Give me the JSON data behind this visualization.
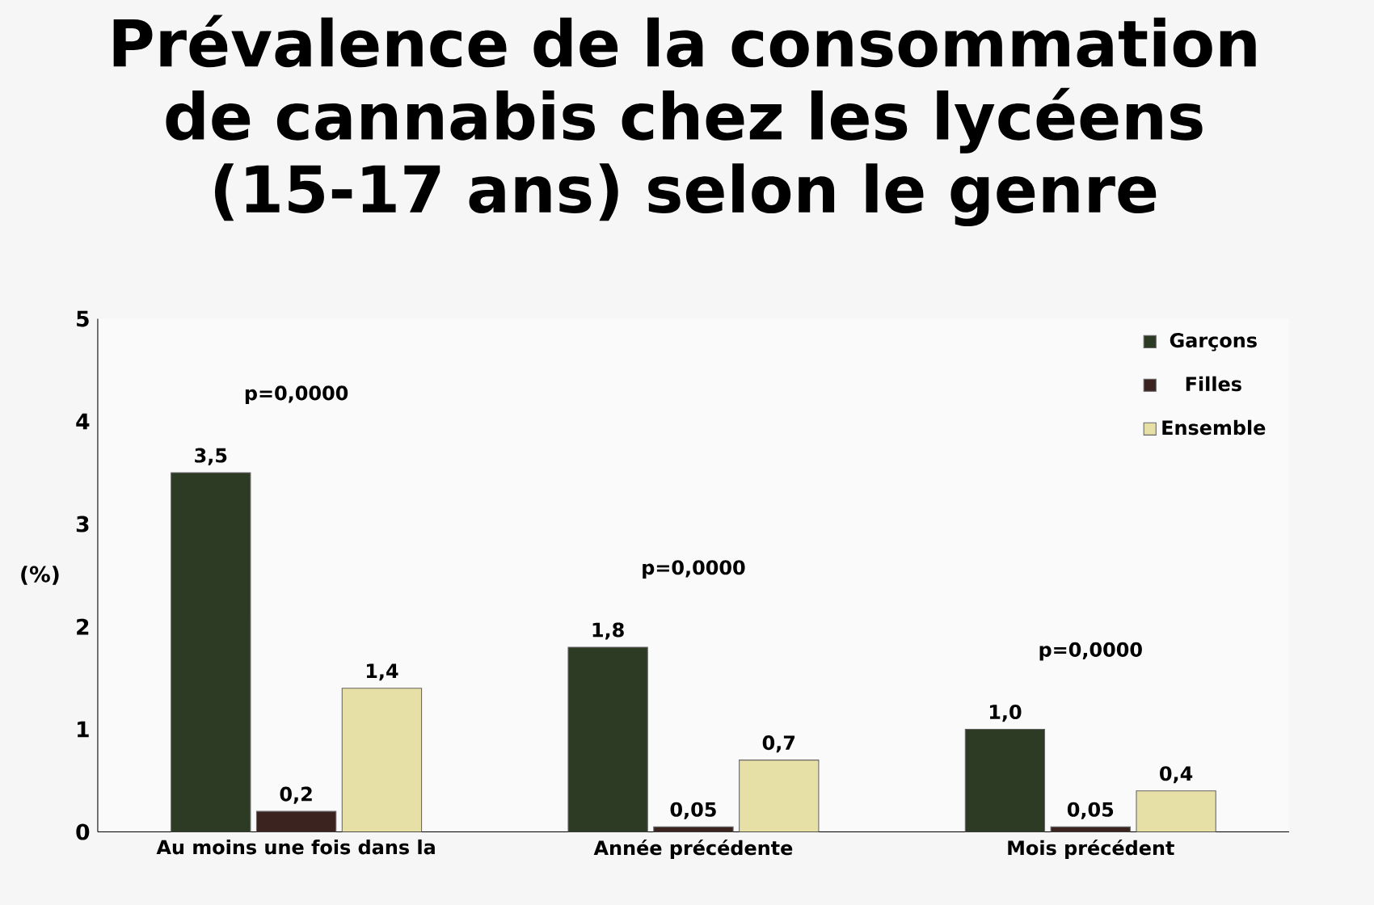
{
  "chart_data": {
    "type": "bar",
    "title": "Prévalence de la consommation de cannabis chez les lycéens (15-17 ans) selon le genre",
    "ylabel": "(%)",
    "categories": [
      "Au moins une fois dans la",
      "Année précédente",
      "Mois précédent"
    ],
    "series": [
      {
        "name": "Garçons",
        "color": "#2e3b24",
        "values": [
          3.5,
          1.8,
          1.0
        ],
        "value_labels": [
          "3,5",
          "1,8",
          "1,0"
        ]
      },
      {
        "name": "Filles",
        "color": "#3b2420",
        "values": [
          0.2,
          0.05,
          0.05
        ],
        "value_labels": [
          "0,2",
          "0,05",
          "0,05"
        ]
      },
      {
        "name": "Ensemble",
        "color": "#e6dfa6",
        "values": [
          1.4,
          0.7,
          0.4
        ],
        "value_labels": [
          "1,4",
          "0,7",
          "0,4"
        ]
      }
    ],
    "annotations": [
      "p=0,0000",
      "p=0,0000",
      "p=0,0000"
    ],
    "ylim": [
      0,
      5
    ],
    "yticks": [
      0,
      1,
      2,
      3,
      4,
      5
    ],
    "legend": "top right",
    "grid": false
  }
}
